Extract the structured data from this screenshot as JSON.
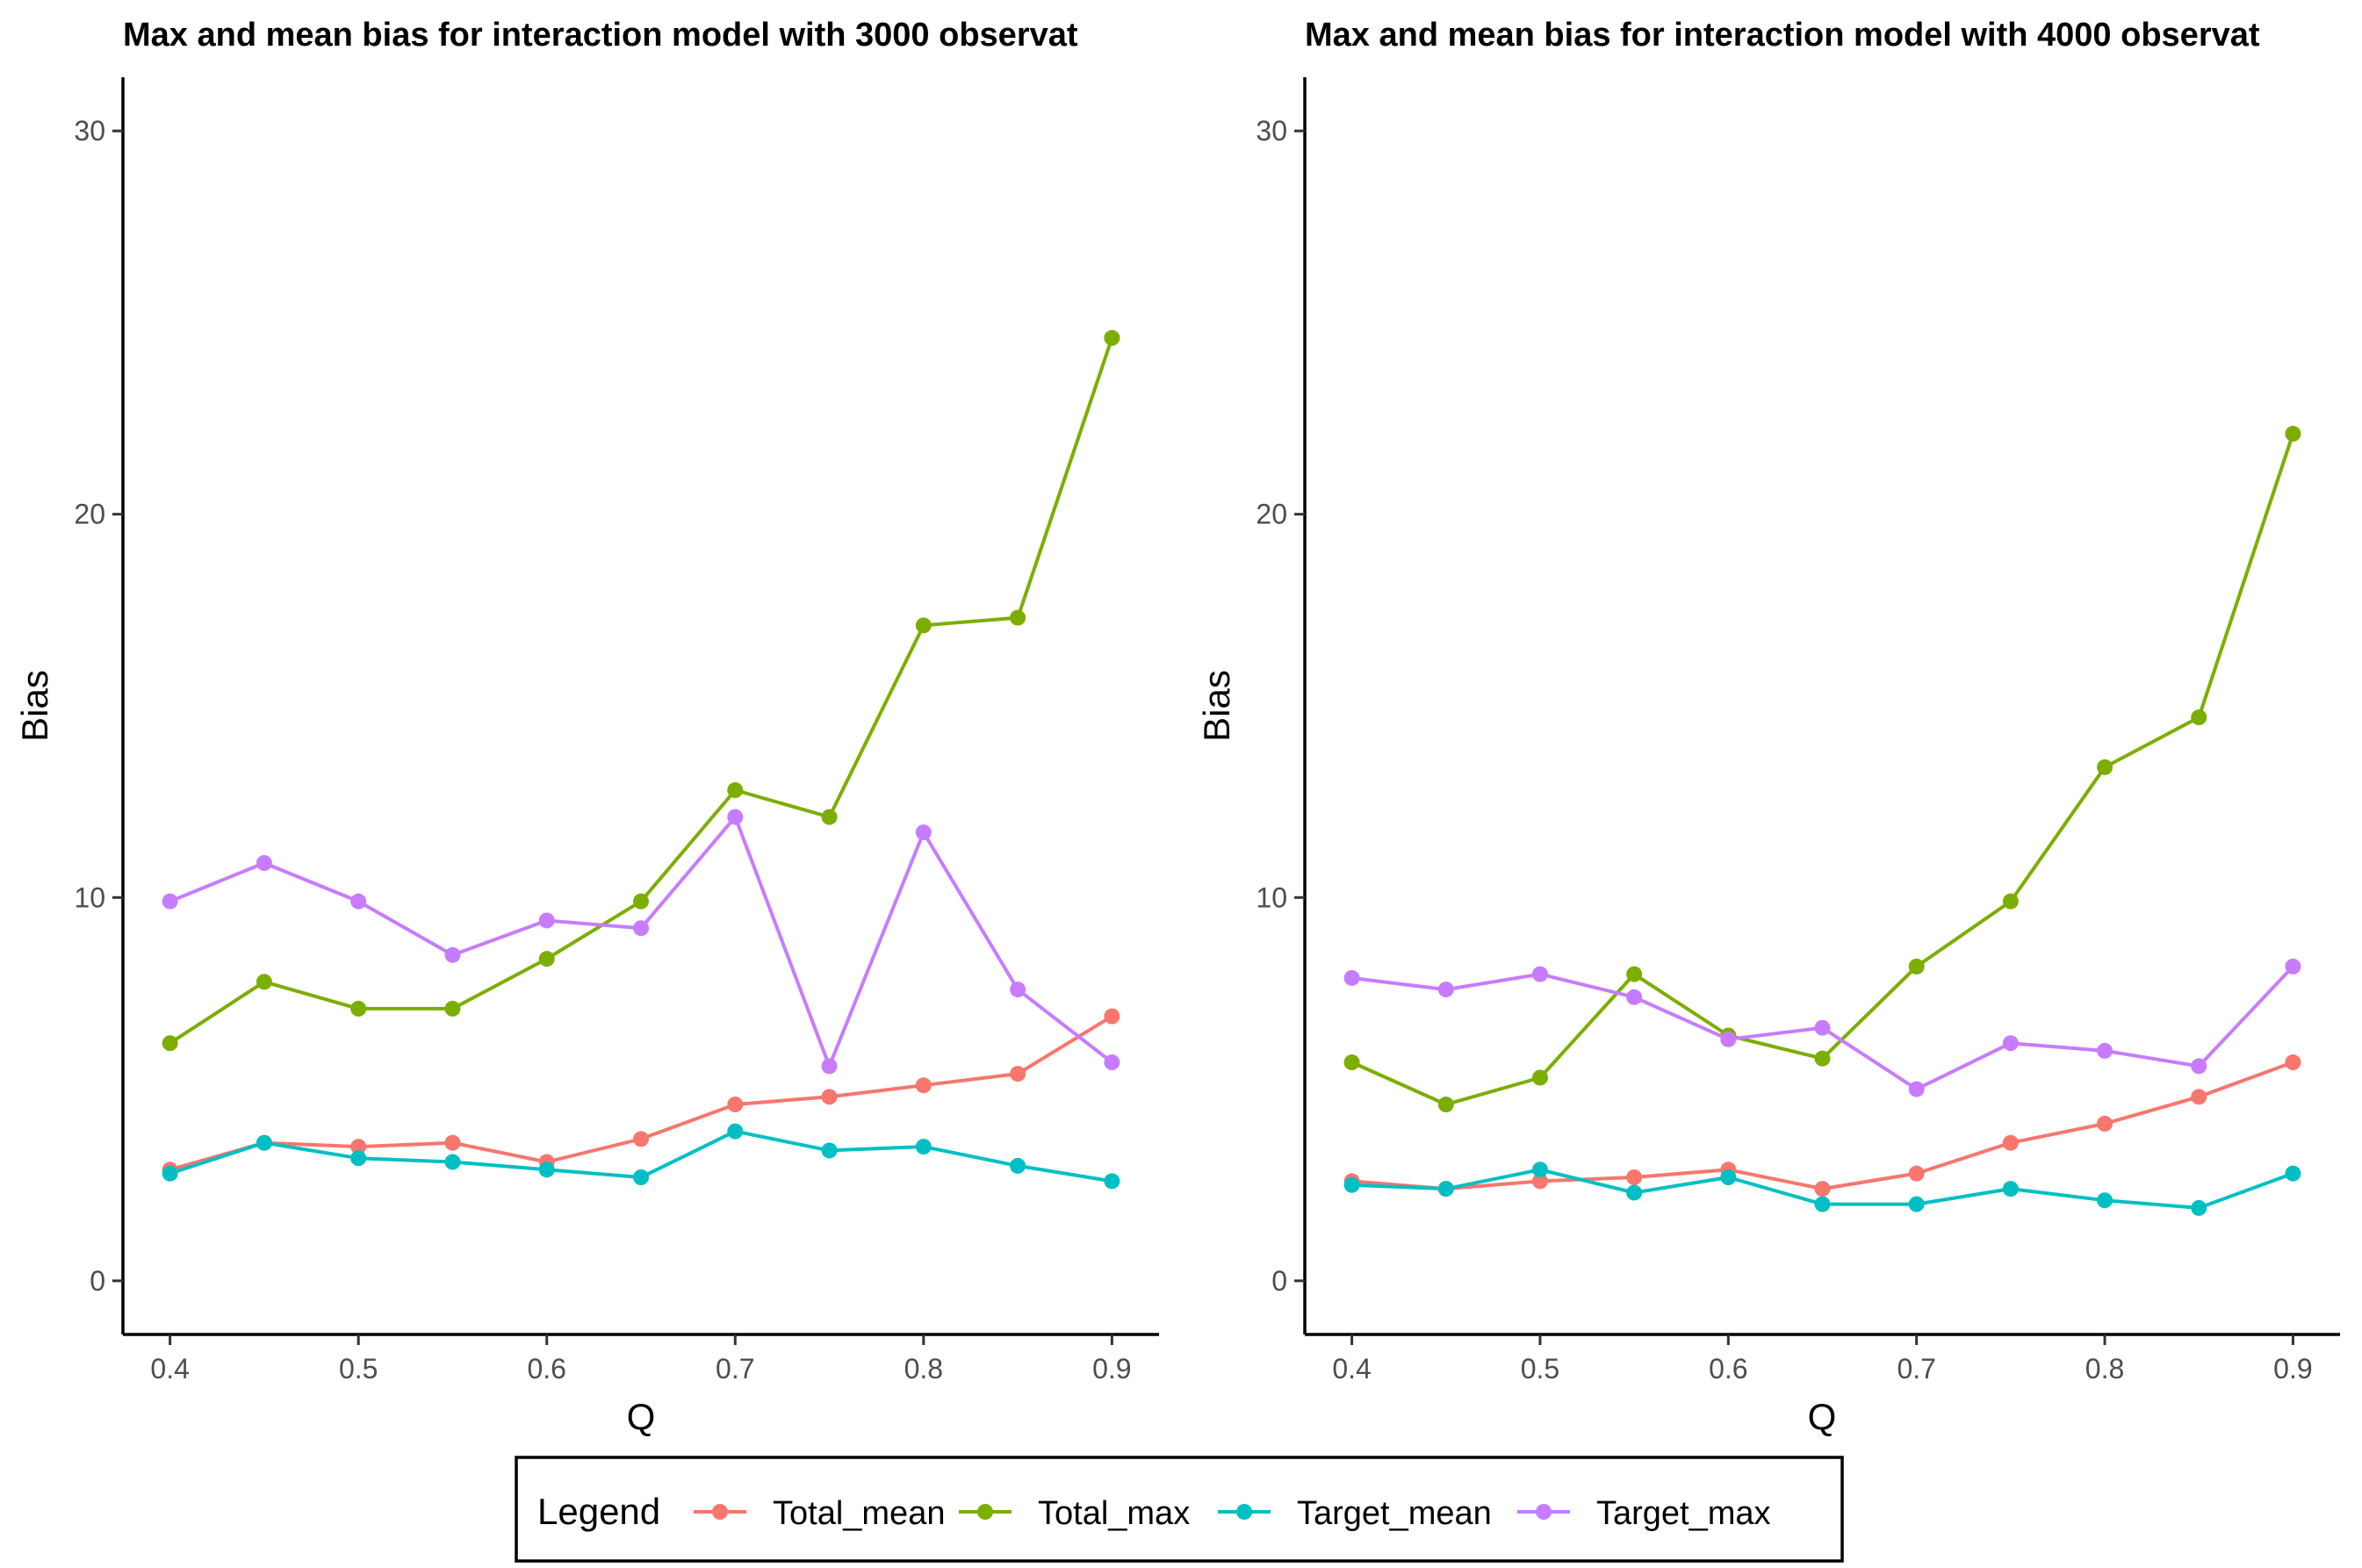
{
  "legend": {
    "title": "Legend",
    "entries": [
      {
        "name": "Total_mean",
        "color": "#F8766D"
      },
      {
        "name": "Total_max",
        "color": "#7CAE00"
      },
      {
        "name": "Target_mean",
        "color": "#00BFC4"
      },
      {
        "name": "Target_max",
        "color": "#C77CFF"
      }
    ]
  },
  "chart_data": [
    {
      "type": "line",
      "title": "Max and mean bias for interaction model with 3000 observat",
      "xlabel": "Q",
      "ylabel": "Bias",
      "xlim": [
        0.375,
        0.925
      ],
      "ylim": [
        -1.4,
        31.4
      ],
      "xticks": [
        0.4,
        0.5,
        0.6,
        0.7,
        0.8,
        0.9
      ],
      "xtick_labels": [
        "0.4",
        "0.5",
        "0.6",
        "0.7",
        "0.8",
        "0.9"
      ],
      "yticks": [
        0,
        10,
        20,
        30
      ],
      "ytick_labels": [
        "0",
        "10",
        "20",
        "30"
      ],
      "grid": false,
      "x": [
        0.4,
        0.45,
        0.5,
        0.55,
        0.6,
        0.65,
        0.7,
        0.75,
        0.8,
        0.85,
        0.9
      ],
      "series": [
        {
          "name": "Total_mean",
          "color": "#F8766D",
          "values": [
            2.9,
            3.6,
            3.5,
            3.6,
            3.1,
            3.7,
            4.6,
            4.8,
            5.1,
            5.4,
            6.9
          ]
        },
        {
          "name": "Total_max",
          "color": "#7CAE00",
          "values": [
            6.2,
            7.8,
            7.1,
            7.1,
            8.4,
            9.9,
            12.8,
            12.1,
            17.1,
            17.3,
            24.6
          ]
        },
        {
          "name": "Target_mean",
          "color": "#00BFC4",
          "values": [
            2.8,
            3.6,
            3.2,
            3.1,
            2.9,
            2.7,
            3.9,
            3.4,
            3.5,
            3.0,
            2.6
          ]
        },
        {
          "name": "Target_max",
          "color": "#C77CFF",
          "values": [
            9.9,
            10.9,
            9.9,
            8.5,
            9.4,
            9.2,
            12.1,
            5.6,
            11.7,
            7.6,
            5.7
          ]
        }
      ]
    },
    {
      "type": "line",
      "title": "Max and mean bias for interaction model with 4000 observat",
      "xlabel": "Q",
      "ylabel": "Bias",
      "xlim": [
        0.375,
        0.925
      ],
      "ylim": [
        -1.4,
        31.4
      ],
      "xticks": [
        0.4,
        0.5,
        0.6,
        0.7,
        0.8,
        0.9
      ],
      "xtick_labels": [
        "0.4",
        "0.5",
        "0.6",
        "0.7",
        "0.8",
        "0.9"
      ],
      "yticks": [
        0,
        10,
        20,
        30
      ],
      "ytick_labels": [
        "0",
        "10",
        "20",
        "30"
      ],
      "grid": false,
      "x": [
        0.4,
        0.45,
        0.5,
        0.55,
        0.6,
        0.65,
        0.7,
        0.75,
        0.8,
        0.85,
        0.9
      ],
      "series": [
        {
          "name": "Total_mean",
          "color": "#F8766D",
          "values": [
            2.6,
            2.4,
            2.6,
            2.7,
            2.9,
            2.4,
            2.8,
            3.6,
            4.1,
            4.8,
            5.7
          ]
        },
        {
          "name": "Total_max",
          "color": "#7CAE00",
          "values": [
            5.7,
            4.6,
            5.3,
            8.0,
            6.4,
            5.8,
            8.2,
            9.9,
            13.4,
            14.7,
            22.1
          ]
        },
        {
          "name": "Target_mean",
          "color": "#00BFC4",
          "values": [
            2.5,
            2.4,
            2.9,
            2.3,
            2.7,
            2.0,
            2.0,
            2.4,
            2.1,
            1.9,
            2.8
          ]
        },
        {
          "name": "Target_max",
          "color": "#C77CFF",
          "values": [
            7.9,
            7.6,
            8.0,
            7.4,
            6.3,
            6.6,
            5.0,
            6.2,
            6.0,
            5.6,
            8.2
          ]
        }
      ]
    }
  ]
}
